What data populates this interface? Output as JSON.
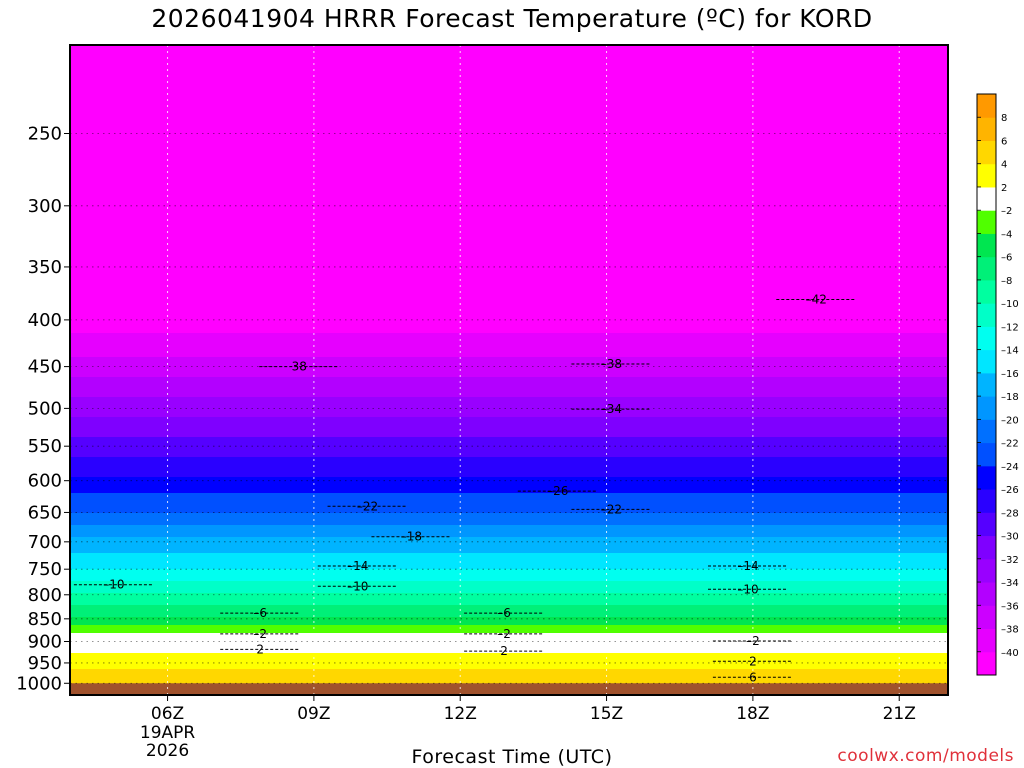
{
  "chart_data": {
    "type": "heatmap",
    "title": "2026041904 HRRR Forecast Temperature (ºC) for KORD",
    "xlabel": "Forecast Time (UTC)",
    "ylabel": "",
    "x_ticks": [
      {
        "hour": 6,
        "label": "06Z",
        "sub": [
          "19APR",
          "2026"
        ]
      },
      {
        "hour": 9,
        "label": "09Z"
      },
      {
        "hour": 12,
        "label": "12Z"
      },
      {
        "hour": 15,
        "label": "15Z"
      },
      {
        "hour": 18,
        "label": "18Z"
      },
      {
        "hour": 21,
        "label": "21Z"
      }
    ],
    "xlim": [
      4,
      22
    ],
    "y_ticks": [
      250,
      300,
      350,
      400,
      450,
      500,
      550,
      600,
      650,
      700,
      750,
      800,
      850,
      900,
      950,
      1000
    ],
    "ylim": [
      1030,
      200
    ],
    "ground_below": 1000,
    "ground_color": "#a0522d",
    "colorbar": {
      "levels": [
        -40,
        -38,
        -36,
        -34,
        -32,
        -30,
        -28,
        -26,
        -24,
        -22,
        -20,
        -18,
        -16,
        -14,
        -12,
        -10,
        -8,
        -6,
        -4,
        -2,
        2,
        4,
        6,
        8
      ],
      "colors": [
        "#ff00ff",
        "#e600ff",
        "#cc00ff",
        "#b300ff",
        "#9900ff",
        "#7f00ff",
        "#5500ff",
        "#2a00ff",
        "#0000ff",
        "#0050ff",
        "#0070ff",
        "#0096ff",
        "#00b4ff",
        "#00e6ff",
        "#00fff0",
        "#00ffc8",
        "#00ffa0",
        "#00f078",
        "#00e650",
        "#50ff00",
        "#ffffff",
        "#ffff00",
        "#ffd700",
        "#ffb400",
        "#ff9900"
      ]
    },
    "temperature_by_pressure": [
      {
        "p": 250,
        "t": -46
      },
      {
        "p": 300,
        "t": -46
      },
      {
        "p": 350,
        "t": -44
      },
      {
        "p": 400,
        "t": -41
      },
      {
        "p": 450,
        "t": -37
      },
      {
        "p": 500,
        "t": -33
      },
      {
        "p": 550,
        "t": -29
      },
      {
        "p": 600,
        "t": -25.5
      },
      {
        "p": 650,
        "t": -22
      },
      {
        "p": 700,
        "t": -17.5
      },
      {
        "p": 750,
        "t": -14
      },
      {
        "p": 800,
        "t": -10
      },
      {
        "p": 850,
        "t": -6
      },
      {
        "p": 880,
        "t": -2
      },
      {
        "p": 905,
        "t": 0
      },
      {
        "p": 925,
        "t": 2
      },
      {
        "p": 960,
        "t": 4
      },
      {
        "p": 1000,
        "t": 5
      }
    ],
    "contour_labels": [
      {
        "hour": 8.7,
        "p": 450,
        "label": "38"
      },
      {
        "hour": 15.1,
        "p": 447,
        "label": "–38"
      },
      {
        "hour": 19.3,
        "p": 380,
        "label": "–42"
      },
      {
        "hour": 15.1,
        "p": 501,
        "label": "–34"
      },
      {
        "hour": 14.0,
        "p": 616,
        "label": "–26"
      },
      {
        "hour": 10.1,
        "p": 640,
        "label": "–22"
      },
      {
        "hour": 15.1,
        "p": 645,
        "label": "–22"
      },
      {
        "hour": 11.0,
        "p": 691,
        "label": "–18"
      },
      {
        "hour": 9.9,
        "p": 744,
        "label": "–14"
      },
      {
        "hour": 17.9,
        "p": 744,
        "label": "–14"
      },
      {
        "hour": 4.9,
        "p": 780,
        "label": "–10"
      },
      {
        "hour": 9.9,
        "p": 783,
        "label": "–10"
      },
      {
        "hour": 17.9,
        "p": 789,
        "label": "–10"
      },
      {
        "hour": 7.9,
        "p": 838,
        "label": "–6"
      },
      {
        "hour": 12.9,
        "p": 838,
        "label": "–6"
      },
      {
        "hour": 7.9,
        "p": 883,
        "label": "–2"
      },
      {
        "hour": 12.9,
        "p": 883,
        "label": "–2"
      },
      {
        "hour": 18.0,
        "p": 899,
        "label": "–2"
      },
      {
        "hour": 7.9,
        "p": 918,
        "label": "2"
      },
      {
        "hour": 12.9,
        "p": 922,
        "label": "2"
      },
      {
        "hour": 18.0,
        "p": 946,
        "label": "2"
      },
      {
        "hour": 18.0,
        "p": 985,
        "label": "6"
      }
    ]
  },
  "credit": "coolwx.com/models"
}
